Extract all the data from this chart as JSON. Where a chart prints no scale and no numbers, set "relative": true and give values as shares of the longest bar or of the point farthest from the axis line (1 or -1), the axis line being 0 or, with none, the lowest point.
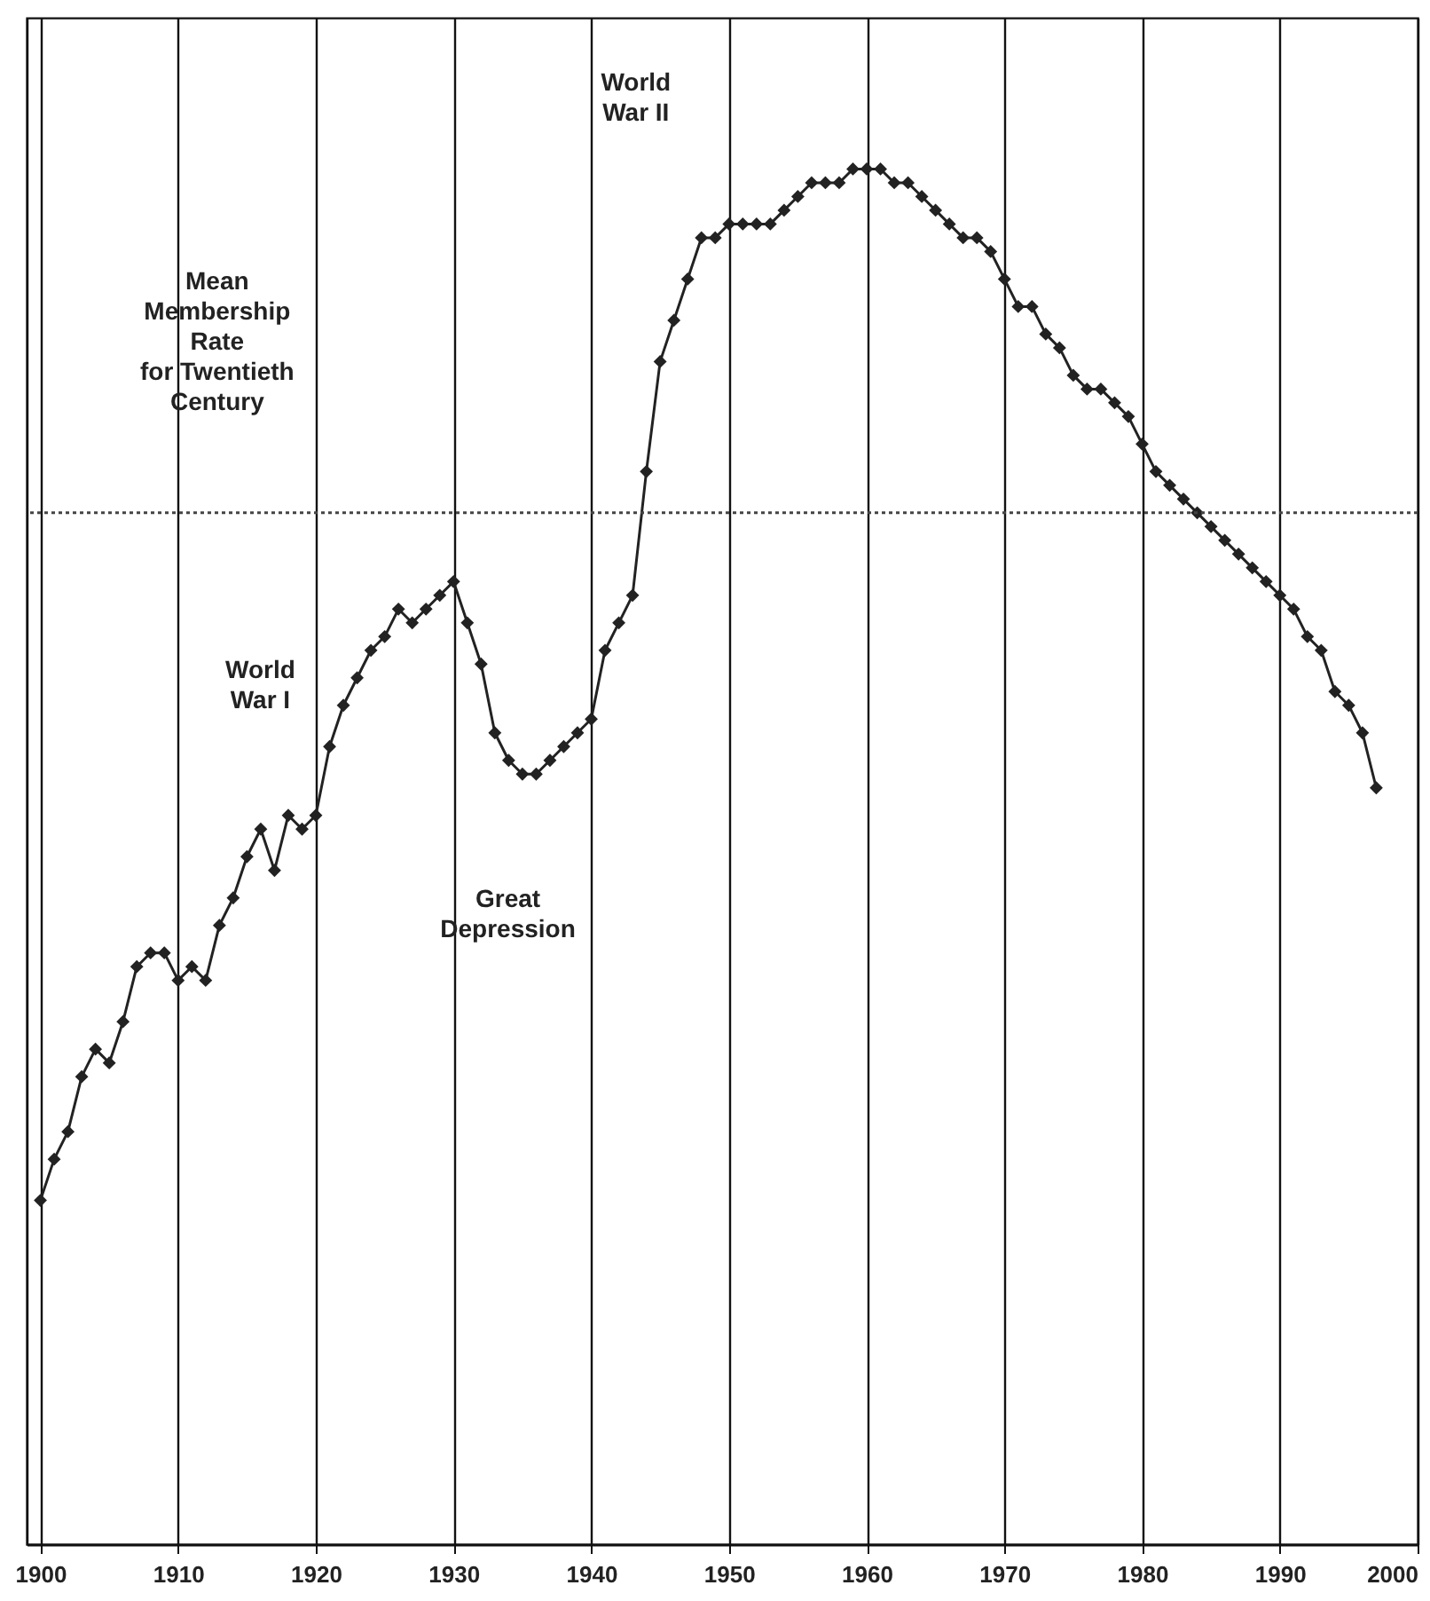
{
  "chart_data": {
    "type": "line",
    "relative": true,
    "xlim": [
      1899,
      2000
    ],
    "xticks": [
      1900,
      1910,
      1920,
      1930,
      1940,
      1950,
      1960,
      1970,
      1980,
      1990,
      2000
    ],
    "grid": "x",
    "marker": "diamond",
    "line_style": "solid",
    "x": [
      1900,
      1901,
      1902,
      1903,
      1904,
      1905,
      1906,
      1907,
      1908,
      1909,
      1910,
      1911,
      1912,
      1913,
      1914,
      1915,
      1916,
      1917,
      1918,
      1919,
      1920,
      1921,
      1922,
      1923,
      1924,
      1925,
      1926,
      1927,
      1928,
      1929,
      1930,
      1931,
      1932,
      1933,
      1934,
      1935,
      1936,
      1937,
      1938,
      1939,
      1940,
      1941,
      1942,
      1943,
      1944,
      1945,
      1946,
      1947,
      1948,
      1949,
      1950,
      1951,
      1952,
      1953,
      1954,
      1955,
      1956,
      1957,
      1958,
      1959,
      1960,
      1961,
      1962,
      1963,
      1964,
      1965,
      1966,
      1967,
      1968,
      1969,
      1970,
      1971,
      1972,
      1973,
      1974,
      1975,
      1976,
      1977,
      1978,
      1979,
      1980,
      1981,
      1982,
      1983,
      1984,
      1985,
      1986,
      1987,
      1988,
      1989,
      1990,
      1991,
      1992,
      1993,
      1994,
      1995,
      1996,
      1997
    ],
    "series": [
      {
        "color": "#222222",
        "values": [
          0.25,
          0.28,
          0.3,
          0.34,
          0.36,
          0.35,
          0.38,
          0.42,
          0.43,
          0.43,
          0.41,
          0.42,
          0.41,
          0.45,
          0.47,
          0.5,
          0.52,
          0.49,
          0.53,
          0.52,
          0.53,
          0.58,
          0.61,
          0.63,
          0.65,
          0.66,
          0.68,
          0.67,
          0.68,
          0.69,
          0.7,
          0.67,
          0.64,
          0.59,
          0.57,
          0.56,
          0.56,
          0.57,
          0.58,
          0.59,
          0.6,
          0.65,
          0.67,
          0.69,
          0.78,
          0.86,
          0.89,
          0.92,
          0.95,
          0.95,
          0.96,
          0.96,
          0.96,
          0.96,
          0.97,
          0.98,
          0.99,
          0.99,
          0.99,
          1.0,
          1,
          1.0,
          0.99,
          0.99,
          0.98,
          0.97,
          0.96,
          0.95,
          0.95,
          0.94,
          0.92,
          0.9,
          0.9,
          0.88,
          0.87,
          0.85,
          0.84,
          0.84,
          0.83,
          0.82,
          0.8,
          0.78,
          0.77,
          0.76,
          0.75,
          0.74,
          0.73,
          0.72,
          0.71,
          0.7,
          0.69,
          0.68,
          0.66,
          0.65,
          0.62,
          0.61,
          0.59,
          0.55
        ]
      }
    ],
    "ref_lines": [
      {
        "axis": "y",
        "value": 0.75,
        "color": "#444444",
        "line_style": "dotted"
      }
    ],
    "annotations": [
      "Mean\nMembership\nRate\nfor Twentieth\nCentury",
      "World\nWar I",
      "Great\nDepression",
      "World\nWar II"
    ]
  }
}
